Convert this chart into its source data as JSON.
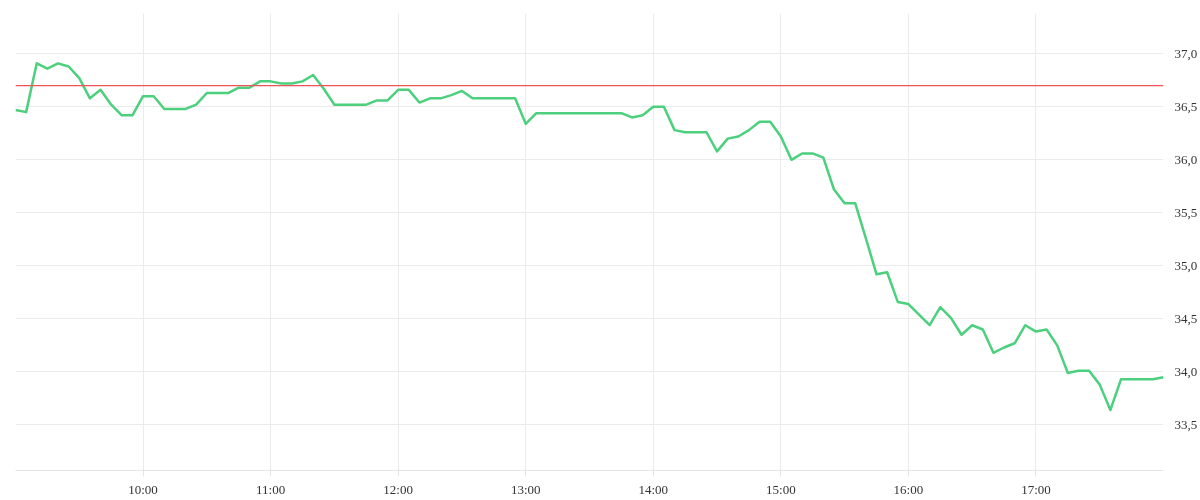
{
  "chart_data": {
    "type": "line",
    "x": [
      9,
      9.0833,
      9.1667,
      9.25,
      9.3333,
      9.4167,
      9.5,
      9.5833,
      9.6667,
      9.75,
      9.8333,
      9.9167,
      10,
      10.0833,
      10.1667,
      10.25,
      10.3333,
      10.4167,
      10.5,
      10.5833,
      10.6667,
      10.75,
      10.8333,
      10.9167,
      11,
      11.0833,
      11.1667,
      11.25,
      11.3333,
      11.4167,
      11.5,
      11.5833,
      11.6667,
      11.75,
      11.8333,
      11.9167,
      12,
      12.0833,
      12.1667,
      12.25,
      12.3333,
      12.4167,
      12.5,
      12.5833,
      12.6667,
      12.75,
      12.8333,
      12.9167,
      13,
      13.0833,
      13.1667,
      13.25,
      13.3333,
      13.4167,
      13.5,
      13.5833,
      13.6667,
      13.75,
      13.8333,
      13.9167,
      14,
      14.0833,
      14.1667,
      14.25,
      14.3333,
      14.4167,
      14.5,
      14.5833,
      14.6667,
      14.75,
      14.8333,
      14.9167,
      15,
      15.0833,
      15.1667,
      15.25,
      15.3333,
      15.4167,
      15.5,
      15.5833,
      15.6667,
      15.75,
      15.8333,
      15.9167,
      16,
      16.0833,
      16.1667,
      16.25,
      16.3333,
      16.4167,
      16.5,
      16.5833,
      16.6667,
      16.75,
      16.8333,
      16.9167,
      17,
      17.0833,
      17.1667,
      17.25,
      17.3333,
      17.4167,
      17.5,
      17.5833,
      17.6667,
      17.75,
      17.8333,
      17.9167,
      18
    ],
    "series": [
      {
        "color": "#4cd07d",
        "values": [
          36.47,
          36.45,
          36.91,
          36.86,
          36.91,
          36.88,
          36.77,
          36.58,
          36.66,
          36.52,
          36.42,
          36.42,
          36.6,
          36.6,
          36.48,
          36.48,
          36.48,
          36.52,
          36.63,
          36.63,
          36.63,
          36.68,
          36.68,
          36.74,
          36.74,
          36.72,
          36.72,
          36.74,
          36.8,
          36.67,
          36.52,
          36.52,
          36.52,
          36.52,
          36.56,
          36.56,
          36.66,
          36.66,
          36.54,
          36.58,
          36.58,
          36.61,
          36.65,
          36.58,
          36.58,
          36.58,
          36.58,
          36.58,
          36.34,
          36.44,
          36.44,
          36.44,
          36.44,
          36.44,
          36.44,
          36.44,
          36.44,
          36.44,
          36.4,
          36.42,
          36.5,
          36.5,
          36.28,
          36.26,
          36.26,
          36.26,
          36.08,
          36.2,
          36.22,
          36.28,
          36.36,
          36.36,
          36.22,
          36.0,
          36.06,
          36.06,
          36.02,
          35.72,
          35.59,
          35.59,
          35.26,
          34.92,
          34.94,
          34.66,
          34.64,
          34.54,
          34.44,
          34.61,
          34.51,
          34.35,
          34.44,
          34.4,
          34.18,
          34.23,
          34.27,
          34.44,
          34.38,
          34.4,
          34.25,
          33.99,
          34.01,
          34.01,
          33.88,
          33.64,
          33.93,
          33.93,
          33.93,
          33.93,
          33.95
        ]
      }
    ],
    "xlim": [
      9,
      18
    ],
    "xticks": [
      {
        "value": 10,
        "label": "10:00"
      },
      {
        "value": 11,
        "label": "11:00"
      },
      {
        "value": 12,
        "label": "12:00"
      },
      {
        "value": 13,
        "label": "13:00"
      },
      {
        "value": 14,
        "label": "14:00"
      },
      {
        "value": 15,
        "label": "15:00"
      },
      {
        "value": 16,
        "label": "16:00"
      },
      {
        "value": 17,
        "label": "17:00"
      }
    ],
    "ylim": [
      33.07,
      37.38
    ],
    "yticks": [
      {
        "value": 33.5,
        "label": "33,5"
      },
      {
        "value": 34.0,
        "label": "34,0"
      },
      {
        "value": 34.5,
        "label": "34,5"
      },
      {
        "value": 35.0,
        "label": "35,0"
      },
      {
        "value": 35.5,
        "label": "35,5"
      },
      {
        "value": 36.0,
        "label": "36,0"
      },
      {
        "value": 36.5,
        "label": "36,5"
      },
      {
        "value": 37.0,
        "label": "37,0"
      }
    ],
    "ref_lines": [
      {
        "axis": "y",
        "value": 36.7,
        "color": "#f0525a"
      }
    ],
    "grid": true,
    "line_style": "solid",
    "marker": "none"
  }
}
